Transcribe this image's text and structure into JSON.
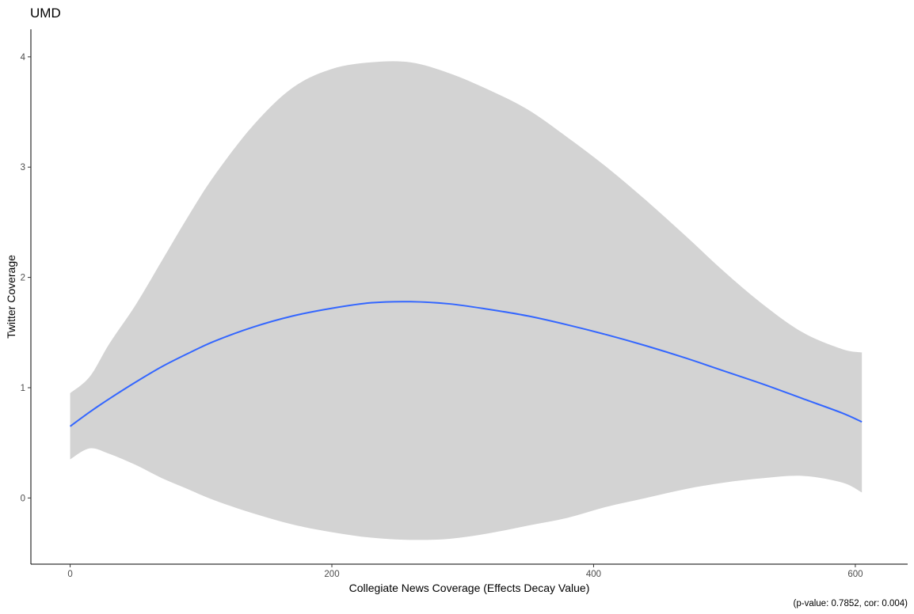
{
  "chart_data": {
    "type": "line",
    "title": "UMD",
    "xlabel": "Collegiate News Coverage (Effects Decay Value)",
    "ylabel": "Twitter Coverage",
    "caption": "(p-value: 0.7852, cor: 0.004)",
    "xlim": [
      -30,
      640
    ],
    "ylim": [
      -0.6,
      4.25
    ],
    "x_ticks": [
      0,
      200,
      400,
      600
    ],
    "y_ticks": [
      0,
      1,
      2,
      3,
      4
    ],
    "grid": false,
    "colors": {
      "line": "#3366FF",
      "band": "#D3D3D3",
      "axis": "#000000"
    },
    "series": [
      {
        "x": [
          0,
          15,
          30,
          50,
          70,
          90,
          110,
          140,
          170,
          200,
          230,
          260,
          290,
          320,
          350,
          380,
          410,
          440,
          470,
          500,
          530,
          560,
          590,
          605
        ],
        "y": [
          0.65,
          0.78,
          0.9,
          1.05,
          1.19,
          1.31,
          1.42,
          1.55,
          1.65,
          1.72,
          1.77,
          1.78,
          1.76,
          1.71,
          1.65,
          1.57,
          1.48,
          1.38,
          1.27,
          1.15,
          1.03,
          0.9,
          0.77,
          0.69
        ],
        "lower": [
          0.35,
          0.45,
          0.4,
          0.3,
          0.18,
          0.08,
          -0.02,
          -0.14,
          -0.24,
          -0.31,
          -0.36,
          -0.38,
          -0.37,
          -0.32,
          -0.25,
          -0.18,
          -0.08,
          0.0,
          0.08,
          0.14,
          0.18,
          0.2,
          0.14,
          0.05
        ],
        "upper": [
          0.95,
          1.1,
          1.4,
          1.75,
          2.15,
          2.55,
          2.92,
          3.38,
          3.72,
          3.89,
          3.95,
          3.95,
          3.85,
          3.7,
          3.52,
          3.27,
          3.0,
          2.7,
          2.38,
          2.05,
          1.75,
          1.5,
          1.35,
          1.32
        ]
      }
    ]
  }
}
